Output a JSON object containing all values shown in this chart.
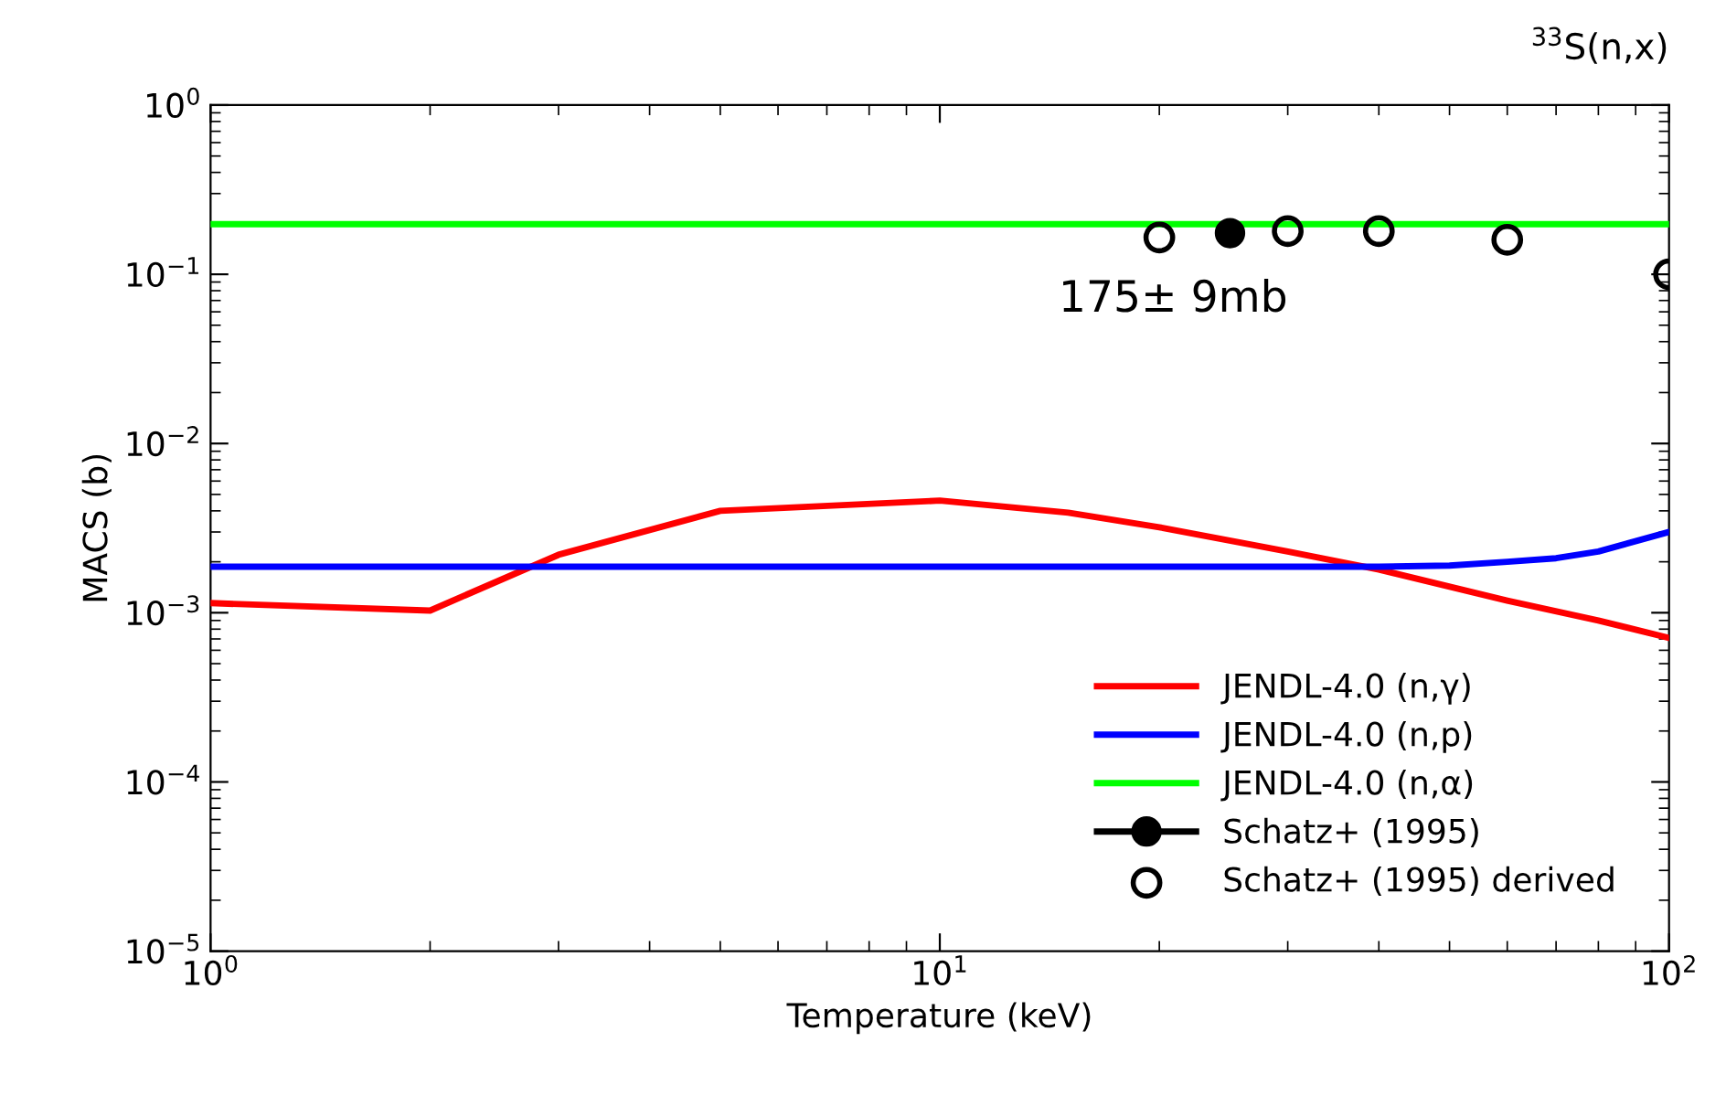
{
  "chart_data": {
    "type": "line",
    "title": "$^{33}$S(n,x)",
    "xlabel": "Temperature (keV)",
    "ylabel": "MACS (b)",
    "log": "xy",
    "xlim": [
      1,
      100
    ],
    "ylim": [
      1e-05,
      1
    ],
    "xticks": [
      {
        "value": 1,
        "label": "10$^{0}$"
      },
      {
        "value": 10,
        "label": "10$^{1}$"
      },
      {
        "value": 100,
        "label": "10$^{2}$"
      }
    ],
    "yticks": [
      {
        "value": 1e-05,
        "label": "10$^{−5}$"
      },
      {
        "value": 0.0001,
        "label": "10$^{−4}$"
      },
      {
        "value": 0.001,
        "label": "10$^{−3}$"
      },
      {
        "value": 0.01,
        "label": "10$^{−2}$"
      },
      {
        "value": 0.1,
        "label": "10$^{−1}$"
      },
      {
        "value": 1,
        "label": "10$^{0}$"
      }
    ],
    "grid": false,
    "legend": "bottom right",
    "annotations": [
      "175± 9mb"
    ],
    "series": [
      {
        "name": "JENDL-4.0 (n,γ)",
        "color": "#ff0000",
        "x": [
          1,
          2,
          3,
          5,
          10,
          15,
          20,
          30,
          40,
          60,
          80,
          100
        ],
        "values": [
          0.00114,
          0.00103,
          0.0022,
          0.004,
          0.0046,
          0.0039,
          0.0032,
          0.0023,
          0.0018,
          0.00118,
          0.0009,
          0.00071
        ]
      },
      {
        "name": "JENDL-4.0 (n,p)",
        "color": "#0000ff",
        "x": [
          1,
          10,
          40,
          50,
          60,
          70,
          80,
          100
        ],
        "values": [
          0.00187,
          0.00187,
          0.00187,
          0.0019,
          0.002,
          0.0021,
          0.0023,
          0.003
        ]
      },
      {
        "name": "JENDL-4.0 (n,α)",
        "color": "#00ff00",
        "x": [
          1,
          100
        ],
        "values": [
          0.198,
          0.198
        ]
      },
      {
        "name": "Schatz+ (1995)",
        "color": "#000000",
        "marker": "circle",
        "x": [
          25
        ],
        "values": [
          0.175
        ]
      },
      {
        "name": "Schatz+ (1995) derived",
        "color": "#000000",
        "type": "scatter",
        "marker": "circle",
        "x": [
          20,
          30,
          40,
          60,
          100
        ],
        "values": [
          0.165,
          0.18,
          0.18,
          0.16,
          0.1
        ]
      }
    ]
  }
}
